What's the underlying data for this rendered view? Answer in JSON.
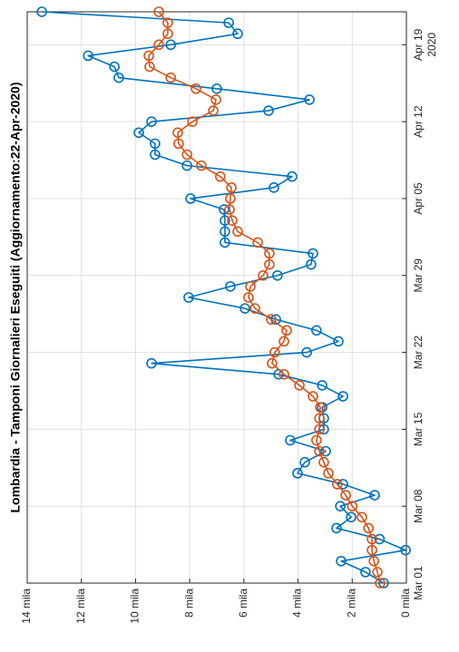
{
  "chart_data": {
    "type": "line",
    "title": "Lombardia - Tamponi Giornalieri Eseguiti (Aggiornamento:22-Apr-2020)",
    "x": [
      "2020-03-01",
      "2020-03-02",
      "2020-03-03",
      "2020-03-04",
      "2020-03-05",
      "2020-03-06",
      "2020-03-07",
      "2020-03-08",
      "2020-03-09",
      "2020-03-10",
      "2020-03-11",
      "2020-03-12",
      "2020-03-13",
      "2020-03-14",
      "2020-03-15",
      "2020-03-16",
      "2020-03-17",
      "2020-03-18",
      "2020-03-19",
      "2020-03-20",
      "2020-03-21",
      "2020-03-22",
      "2020-03-23",
      "2020-03-24",
      "2020-03-25",
      "2020-03-26",
      "2020-03-27",
      "2020-03-28",
      "2020-03-29",
      "2020-03-30",
      "2020-03-31",
      "2020-04-01",
      "2020-04-02",
      "2020-04-03",
      "2020-04-04",
      "2020-04-05",
      "2020-04-06",
      "2020-04-07",
      "2020-04-08",
      "2020-04-09",
      "2020-04-10",
      "2020-04-11",
      "2020-04-12",
      "2020-04-13",
      "2020-04-14",
      "2020-04-15",
      "2020-04-16",
      "2020-04-17",
      "2020-04-18",
      "2020-04-19",
      "2020-04-20",
      "2020-04-21",
      "2020-04-22"
    ],
    "xlim": [
      "2020-03-01",
      "2020-04-22"
    ],
    "xticks": [
      {
        "value": "2020-03-01",
        "label": "Mar 01"
      },
      {
        "value": "2020-03-08",
        "label": "Mar 08"
      },
      {
        "value": "2020-03-15",
        "label": "Mar 15"
      },
      {
        "value": "2020-03-22",
        "label": "Mar 22"
      },
      {
        "value": "2020-03-29",
        "label": "Mar 29"
      },
      {
        "value": "2020-04-05",
        "label": "Apr 05"
      },
      {
        "value": "2020-04-12",
        "label": "Apr 12"
      },
      {
        "value": "2020-04-19",
        "label": "Apr 19"
      }
    ],
    "x_year_label": "2020",
    "ylim": [
      0,
      14
    ],
    "yticks": [
      {
        "value": 0,
        "label": "0 mila"
      },
      {
        "value": 2,
        "label": "2 mila"
      },
      {
        "value": 4,
        "label": "4 mila"
      },
      {
        "value": 6,
        "label": "6 mila"
      },
      {
        "value": 8,
        "label": "8 mila"
      },
      {
        "value": 10,
        "label": "10 mila"
      },
      {
        "value": 12,
        "label": "12 mila"
      },
      {
        "value": 14,
        "label": "14 mila"
      }
    ],
    "grid": true,
    "series": [
      {
        "color": "#0072bd",
        "values": [
          0.84,
          1.51,
          2.41,
          0.03,
          0.99,
          2.58,
          2.04,
          2.44,
          1.17,
          2.34,
          4.02,
          3.75,
          2.98,
          4.29,
          3.05,
          3.05,
          3.11,
          2.34,
          3.11,
          4.72,
          9.41,
          3.68,
          2.51,
          3.32,
          4.82,
          5.96,
          8.04,
          6.5,
          4.76,
          3.52,
          3.45,
          6.7,
          6.7,
          6.7,
          6.73,
          7.97,
          4.89,
          4.22,
          8.1,
          9.28,
          9.28,
          9.88,
          9.41,
          5.09,
          3.58,
          7.0,
          10.62,
          10.78,
          11.75,
          8.7,
          6.23,
          6.56,
          13.46
        ]
      },
      {
        "color": "#d95319",
        "values": [
          0.97,
          1.07,
          1.2,
          1.27,
          1.27,
          1.4,
          1.64,
          2.0,
          2.24,
          2.55,
          2.88,
          3.05,
          3.21,
          3.32,
          3.21,
          3.21,
          3.18,
          3.45,
          3.95,
          4.52,
          4.96,
          4.86,
          4.52,
          4.42,
          4.99,
          5.59,
          5.83,
          5.76,
          5.29,
          5.06,
          5.06,
          5.49,
          6.23,
          6.43,
          6.53,
          6.5,
          6.46,
          6.87,
          7.57,
          8.1,
          8.41,
          8.44,
          7.9,
          7.13,
          7.03,
          7.77,
          8.7,
          9.48,
          9.51,
          9.14,
          8.81,
          8.81,
          9.14
        ]
      }
    ]
  }
}
